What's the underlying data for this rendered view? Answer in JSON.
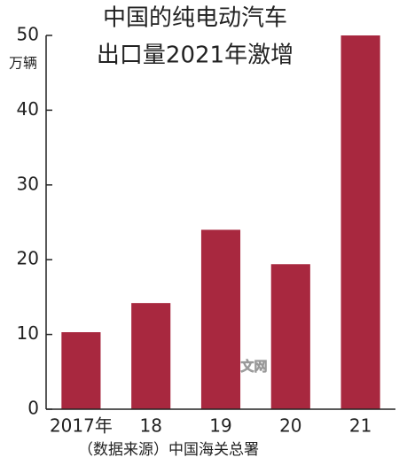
{
  "chart_data": {
    "type": "bar",
    "title": [
      "中国的纯电动汽车",
      "出口量2021年激增"
    ],
    "y_unit": "万辆",
    "source": "（数据来源）中国海关总署",
    "watermark": "日经中文网",
    "categories": [
      "2017年",
      "18",
      "19",
      "20",
      "21"
    ],
    "values": [
      10.3,
      14.2,
      24,
      19.4,
      50
    ],
    "color": "#a8283f",
    "ylim": [
      0,
      50
    ],
    "yticks": [
      0,
      10,
      20,
      30,
      40,
      50
    ]
  }
}
